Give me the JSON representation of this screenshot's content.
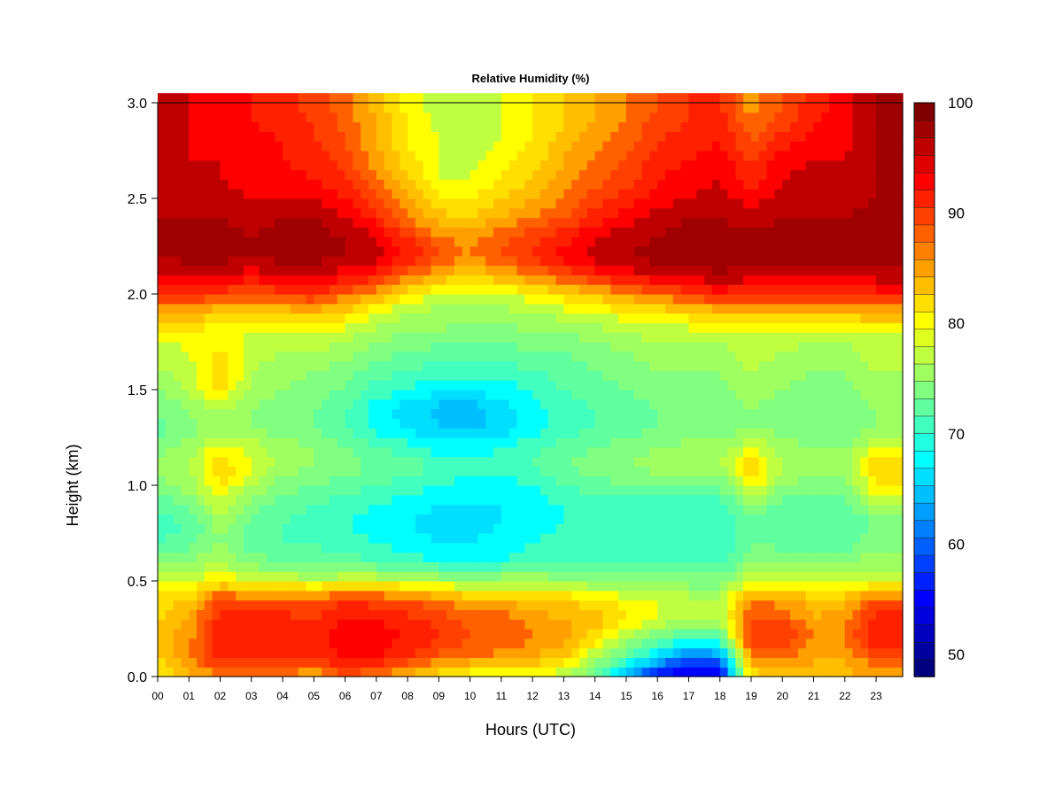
{
  "chart_data": {
    "type": "heatmap",
    "title": "Relative Humidity (%)",
    "xlabel": "Hours (UTC)",
    "ylabel": "Height (km)",
    "xlim": [
      0,
      23.85
    ],
    "ylim": [
      0,
      3.0
    ],
    "x_ticks": [
      "00",
      "01",
      "02",
      "03",
      "04",
      "05",
      "06",
      "07",
      "08",
      "09",
      "10",
      "11",
      "12",
      "13",
      "14",
      "15",
      "16",
      "17",
      "18",
      "19",
      "20",
      "21",
      "22",
      "23"
    ],
    "y_ticks": [
      "0.0",
      "0.5",
      "1.0",
      "1.5",
      "2.0",
      "2.5",
      "3.0"
    ],
    "colorbar": {
      "min": 48,
      "max": 100,
      "levels": [
        48,
        50,
        52,
        54,
        56,
        58,
        60,
        62,
        64,
        66,
        68,
        70,
        72,
        74,
        76,
        78,
        80,
        82,
        84,
        86,
        88,
        90,
        92,
        94,
        96,
        98,
        100
      ],
      "colors": [
        "#00007f",
        "#00009f",
        "#0000bf",
        "#0000df",
        "#0000ff",
        "#0020ff",
        "#0040ff",
        "#0060ff",
        "#0080ff",
        "#009fff",
        "#00bfff",
        "#00dfff",
        "#00ffff",
        "#20ffdf",
        "#40ffbf",
        "#60ff9f",
        "#80ff80",
        "#9fff60",
        "#bfff40",
        "#dfff20",
        "#ffff00",
        "#ffdf00",
        "#ffbf00",
        "#ff9f00",
        "#ff8000",
        "#ff6000",
        "#ff4000",
        "#ff2000",
        "#ff0000",
        "#df0000",
        "#bf0000",
        "#9f0000",
        "#7f0000"
      ],
      "tick_labels": [
        "50",
        "60",
        "70",
        "80",
        "90",
        "100"
      ]
    },
    "hours": [
      0,
      1,
      2,
      3,
      4,
      5,
      6,
      7,
      8,
      9,
      10,
      11,
      12,
      13,
      14,
      15,
      16,
      17,
      18,
      19,
      20,
      21,
      22,
      23
    ],
    "heights_km": [
      0.0,
      0.1,
      0.2,
      0.3,
      0.4,
      0.5,
      0.6,
      0.7,
      0.8,
      0.9,
      1.0,
      1.1,
      1.2,
      1.3,
      1.4,
      1.5,
      1.6,
      1.7,
      1.8,
      1.9,
      2.0,
      2.1,
      2.2,
      2.3,
      2.4,
      2.5,
      2.6,
      2.7,
      2.8,
      2.9,
      3.0
    ],
    "z_rh_percent": [
      [
        82,
        85,
        88,
        87,
        87,
        86,
        90,
        87,
        85,
        82,
        80,
        80,
        80,
        78,
        73,
        65,
        56,
        52,
        54,
        82,
        85,
        86,
        85,
        87
      ],
      [
        84,
        88,
        93,
        93,
        93,
        92,
        95,
        94,
        92,
        89,
        88,
        87,
        86,
        84,
        78,
        72,
        66,
        60,
        62,
        88,
        88,
        86,
        86,
        90
      ],
      [
        85,
        87,
        94,
        94,
        94,
        93,
        95,
        95,
        94,
        92,
        90,
        90,
        88,
        87,
        83,
        78,
        74,
        71,
        72,
        92,
        92,
        88,
        88,
        94
      ],
      [
        84,
        86,
        93,
        93,
        93,
        92,
        94,
        94,
        93,
        91,
        89,
        89,
        87,
        86,
        85,
        82,
        80,
        78,
        78,
        90,
        90,
        86,
        88,
        93
      ],
      [
        83,
        84,
        91,
        90,
        90,
        90,
        92,
        91,
        90,
        88,
        86,
        86,
        85,
        84,
        83,
        81,
        80,
        79,
        78,
        88,
        87,
        85,
        85,
        90
      ],
      [
        79,
        80,
        82,
        80,
        80,
        79,
        80,
        80,
        79,
        78,
        77,
        78,
        78,
        77,
        76,
        76,
        75,
        75,
        75,
        80,
        80,
        79,
        79,
        80
      ],
      [
        75,
        76,
        78,
        75,
        74,
        73,
        73,
        72,
        71,
        70,
        70,
        70,
        71,
        72,
        72,
        72,
        72,
        72,
        71,
        76,
        76,
        76,
        76,
        77
      ],
      [
        72,
        73,
        76,
        73,
        72,
        72,
        71,
        70,
        69,
        68,
        68,
        69,
        70,
        71,
        71,
        70,
        70,
        71,
        70,
        74,
        73,
        73,
        73,
        75
      ],
      [
        71,
        72,
        77,
        73,
        72,
        71,
        70,
        69,
        68,
        67,
        67,
        68,
        69,
        70,
        70,
        70,
        70,
        70,
        70,
        73,
        72,
        72,
        72,
        74
      ],
      [
        73,
        74,
        80,
        75,
        73,
        72,
        71,
        70,
        69,
        68,
        68,
        68,
        69,
        70,
        71,
        71,
        71,
        71,
        71,
        76,
        73,
        73,
        73,
        78
      ],
      [
        75,
        77,
        82,
        78,
        75,
        74,
        73,
        72,
        71,
        70,
        69,
        69,
        70,
        72,
        73,
        74,
        74,
        74,
        74,
        82,
        76,
        75,
        75,
        82
      ],
      [
        76,
        78,
        84,
        80,
        77,
        76,
        75,
        74,
        73,
        72,
        71,
        71,
        72,
        74,
        75,
        76,
        77,
        78,
        78,
        84,
        78,
        77,
        77,
        84
      ],
      [
        75,
        77,
        81,
        79,
        77,
        76,
        74,
        72,
        71,
        69,
        69,
        70,
        71,
        73,
        74,
        75,
        76,
        77,
        77,
        80,
        77,
        76,
        76,
        80
      ],
      [
        73,
        75,
        77,
        76,
        75,
        74,
        72,
        69,
        68,
        66,
        65,
        67,
        69,
        71,
        72,
        73,
        74,
        74,
        74,
        76,
        75,
        74,
        74,
        76
      ],
      [
        74,
        76,
        78,
        76,
        75,
        74,
        72,
        69,
        67,
        65,
        65,
        67,
        69,
        71,
        72,
        73,
        74,
        74,
        74,
        76,
        75,
        74,
        74,
        76
      ],
      [
        76,
        78,
        83,
        77,
        76,
        75,
        74,
        71,
        70,
        68,
        68,
        69,
        70,
        72,
        73,
        74,
        75,
        75,
        75,
        77,
        76,
        75,
        75,
        77
      ],
      [
        78,
        79,
        84,
        78,
        77,
        76,
        75,
        73,
        72,
        71,
        71,
        71,
        72,
        73,
        74,
        75,
        76,
        76,
        76,
        78,
        77,
        76,
        76,
        78
      ],
      [
        79,
        80,
        82,
        79,
        78,
        78,
        77,
        75,
        74,
        73,
        73,
        73,
        74,
        74,
        75,
        76,
        77,
        77,
        77,
        79,
        78,
        77,
        77,
        79
      ],
      [
        81,
        81,
        81,
        80,
        80,
        80,
        79,
        77,
        76,
        76,
        75,
        75,
        76,
        76,
        77,
        78,
        79,
        79,
        79,
        80,
        80,
        79,
        79,
        80
      ],
      [
        86,
        86,
        84,
        84,
        84,
        85,
        83,
        80,
        78,
        77,
        77,
        77,
        78,
        79,
        80,
        81,
        82,
        83,
        84,
        84,
        85,
        85,
        85,
        86
      ],
      [
        92,
        92,
        91,
        90,
        91,
        92,
        89,
        86,
        82,
        80,
        79,
        80,
        81,
        83,
        85,
        87,
        89,
        91,
        93,
        92,
        93,
        92,
        92,
        93
      ],
      [
        96,
        96,
        96,
        95,
        96,
        96,
        95,
        93,
        89,
        86,
        84,
        86,
        88,
        90,
        93,
        95,
        96,
        97,
        98,
        97,
        97,
        97,
        97,
        97
      ],
      [
        98,
        99,
        99,
        98,
        99,
        99,
        98,
        97,
        94,
        90,
        88,
        90,
        92,
        95,
        97,
        98,
        99,
        99,
        99,
        99,
        99,
        99,
        99,
        99
      ],
      [
        98,
        99,
        99,
        98,
        99,
        99,
        98,
        96,
        92,
        88,
        87,
        89,
        91,
        93,
        96,
        97,
        98,
        99,
        99,
        99,
        99,
        99,
        99,
        99
      ],
      [
        98,
        98,
        98,
        97,
        98,
        98,
        96,
        93,
        88,
        85,
        84,
        86,
        88,
        90,
        93,
        95,
        97,
        98,
        98,
        97,
        98,
        98,
        98,
        99
      ],
      [
        97,
        97,
        97,
        96,
        96,
        96,
        94,
        90,
        86,
        82,
        82,
        84,
        86,
        88,
        91,
        93,
        95,
        96,
        97,
        95,
        97,
        98,
        97,
        98
      ],
      [
        97,
        96,
        96,
        95,
        95,
        94,
        92,
        88,
        84,
        80,
        80,
        82,
        84,
        87,
        89,
        91,
        94,
        95,
        96,
        93,
        96,
        97,
        96,
        98
      ],
      [
        97,
        96,
        96,
        95,
        94,
        93,
        91,
        87,
        83,
        80,
        79,
        81,
        83,
        86,
        88,
        90,
        93,
        94,
        95,
        92,
        95,
        96,
        96,
        98
      ],
      [
        97,
        96,
        95,
        95,
        94,
        92,
        90,
        86,
        82,
        80,
        79,
        80,
        82,
        85,
        87,
        89,
        92,
        93,
        94,
        90,
        93,
        95,
        95,
        98
      ],
      [
        97,
        96,
        95,
        94,
        93,
        92,
        89,
        86,
        82,
        79,
        78,
        80,
        82,
        84,
        86,
        88,
        91,
        92,
        93,
        88,
        91,
        94,
        95,
        98
      ],
      [
        97,
        96,
        95,
        94,
        93,
        91,
        89,
        85,
        81,
        79,
        78,
        80,
        82,
        84,
        86,
        88,
        90,
        92,
        92,
        87,
        90,
        93,
        95,
        98
      ]
    ]
  }
}
